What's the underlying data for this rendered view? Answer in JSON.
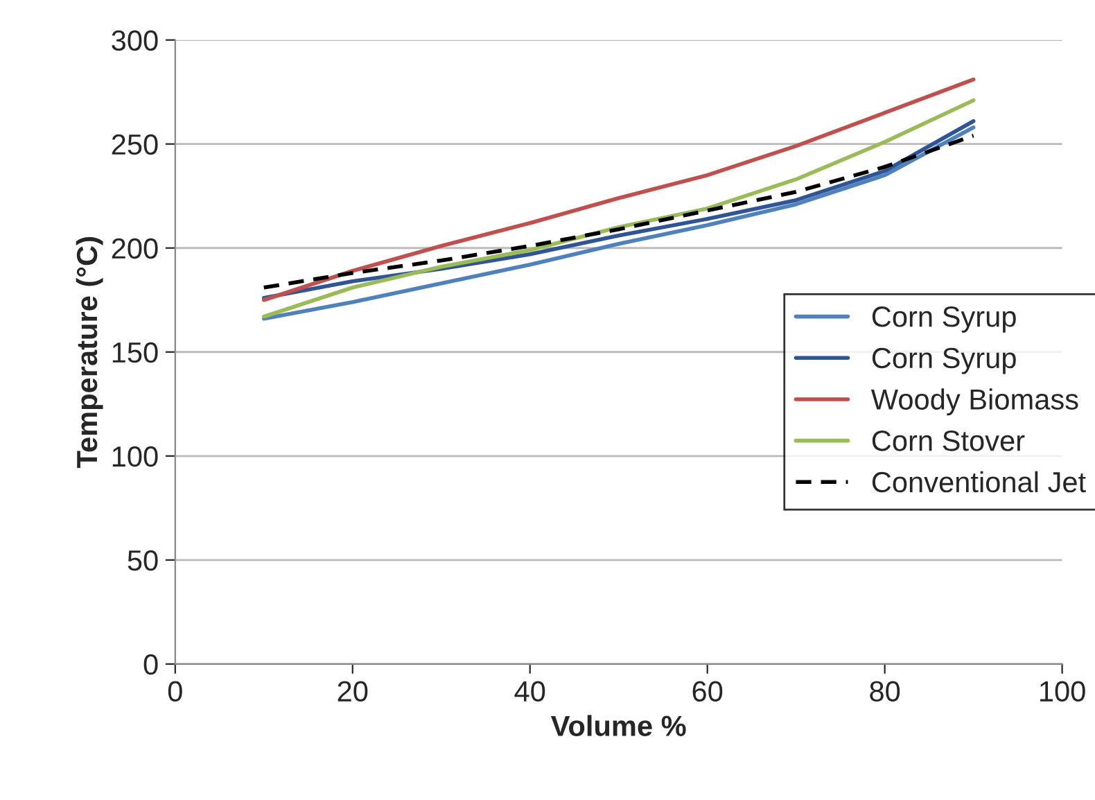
{
  "chart_data": {
    "type": "line",
    "xlabel": "Volume %",
    "ylabel": "Temperature (°C)",
    "x": [
      10,
      20,
      30,
      40,
      50,
      60,
      70,
      80,
      90
    ],
    "series": [
      {
        "name": "Corn Syrup",
        "color": "#4f81bd",
        "values": [
          166,
          174,
          183,
          192,
          202,
          211,
          221,
          235,
          258
        ]
      },
      {
        "name": "Corn Syrup",
        "color": "#2f5597",
        "values": [
          176,
          184,
          190,
          197,
          206,
          214,
          223,
          237,
          261
        ]
      },
      {
        "name": "Woody Biomass",
        "color": "#c0504d",
        "values": [
          175,
          189,
          201,
          212,
          224,
          235,
          249,
          265,
          281
        ]
      },
      {
        "name": "Corn Stover",
        "color": "#9bbb59",
        "values": [
          167,
          181,
          191,
          199,
          210,
          219,
          233,
          251,
          271
        ]
      },
      {
        "name": "Conventional Jet",
        "color": "#000000",
        "line_style": "dashed",
        "values": [
          181,
          188,
          194,
          201,
          209,
          218,
          227,
          239,
          254
        ]
      }
    ],
    "xlim": [
      0,
      100
    ],
    "xticks": [
      0,
      20,
      40,
      60,
      80,
      100
    ],
    "ylim": [
      0,
      300
    ],
    "yticks": [
      0,
      50,
      100,
      150,
      200,
      250,
      300
    ],
    "grid": "y",
    "legend": "right"
  }
}
